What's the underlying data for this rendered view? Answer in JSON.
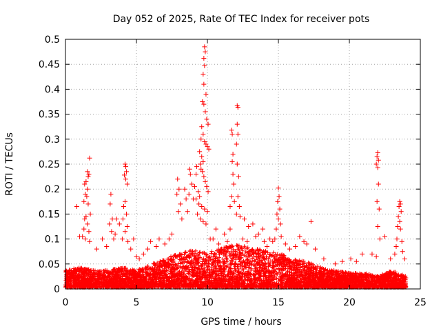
{
  "chart_data": {
    "type": "scatter",
    "title": "Day 052 of 2025, Rate Of TEC Index for receiver pots",
    "xlabel": "GPS time / hours",
    "ylabel": "ROTI / TECUs",
    "xlim": [
      0,
      25
    ],
    "ylim": [
      0,
      0.5
    ],
    "xticks": [
      0,
      5,
      10,
      15,
      20,
      25
    ],
    "xtick_labels": [
      "0",
      "5",
      "10",
      "15",
      "20",
      "25"
    ],
    "yticks": [
      0,
      0.05,
      0.1,
      0.15,
      0.2,
      0.25,
      0.3,
      0.35,
      0.4,
      0.45,
      0.5
    ],
    "ytick_labels": [
      "0",
      "0.05",
      "0.1",
      "0.15",
      "0.2",
      "0.25",
      "0.3",
      "0.35",
      "0.4",
      "0.45",
      "0.5"
    ],
    "grid": true,
    "marker": "+",
    "marker_color": "#ff0000",
    "series_points": [
      [
        9.8,
        0.485
      ],
      [
        9.85,
        0.475
      ],
      [
        9.75,
        0.462
      ],
      [
        9.8,
        0.447
      ],
      [
        9.7,
        0.43
      ],
      [
        9.75,
        0.41
      ],
      [
        9.9,
        0.39
      ],
      [
        9.65,
        0.375
      ],
      [
        9.75,
        0.37
      ],
      [
        9.85,
        0.355
      ],
      [
        9.95,
        0.34
      ],
      [
        10.05,
        0.33
      ],
      [
        9.6,
        0.325
      ],
      [
        9.7,
        0.31
      ],
      [
        9.55,
        0.3
      ],
      [
        9.8,
        0.295
      ],
      [
        9.9,
        0.29
      ],
      [
        10.0,
        0.285
      ],
      [
        10.1,
        0.28
      ],
      [
        9.45,
        0.275
      ],
      [
        9.6,
        0.265
      ],
      [
        9.7,
        0.255
      ],
      [
        9.5,
        0.25
      ],
      [
        9.55,
        0.24
      ],
      [
        9.65,
        0.235
      ],
      [
        9.75,
        0.225
      ],
      [
        9.85,
        0.215
      ],
      [
        9.95,
        0.205
      ],
      [
        10.05,
        0.195
      ],
      [
        9.35,
        0.195
      ],
      [
        9.45,
        0.185
      ],
      [
        9.25,
        0.245
      ],
      [
        9.2,
        0.23
      ],
      [
        9.1,
        0.205
      ],
      [
        9.2,
        0.18
      ],
      [
        9.4,
        0.17
      ],
      [
        9.6,
        0.165
      ],
      [
        9.8,
        0.16
      ],
      [
        10.0,
        0.155
      ],
      [
        9.3,
        0.15
      ],
      [
        9.5,
        0.14
      ],
      [
        9.7,
        0.135
      ],
      [
        9.9,
        0.13
      ],
      [
        11.7,
        0.318
      ],
      [
        11.75,
        0.31
      ],
      [
        11.8,
        0.27
      ],
      [
        11.75,
        0.255
      ],
      [
        11.8,
        0.23
      ],
      [
        11.85,
        0.21
      ],
      [
        11.7,
        0.185
      ],
      [
        11.9,
        0.175
      ],
      [
        11.6,
        0.165
      ],
      [
        12.1,
        0.367
      ],
      [
        12.15,
        0.364
      ],
      [
        12.1,
        0.33
      ],
      [
        12.15,
        0.31
      ],
      [
        12.05,
        0.29
      ],
      [
        12.1,
        0.25
      ],
      [
        12.2,
        0.225
      ],
      [
        12.15,
        0.185
      ],
      [
        12.25,
        0.165
      ],
      [
        12.05,
        0.15
      ],
      [
        12.3,
        0.145
      ],
      [
        1.7,
        0.262
      ],
      [
        1.55,
        0.235
      ],
      [
        1.65,
        0.23
      ],
      [
        1.6,
        0.225
      ],
      [
        1.45,
        0.215
      ],
      [
        1.35,
        0.21
      ],
      [
        1.55,
        0.2
      ],
      [
        1.4,
        0.19
      ],
      [
        1.5,
        0.185
      ],
      [
        1.3,
        0.175
      ],
      [
        1.6,
        0.17
      ],
      [
        1.75,
        0.15
      ],
      [
        1.45,
        0.145
      ],
      [
        1.35,
        0.14
      ],
      [
        1.55,
        0.13
      ],
      [
        1.3,
        0.12
      ],
      [
        1.65,
        0.115
      ],
      [
        1.2,
        0.105
      ],
      [
        1.4,
        0.1
      ],
      [
        1.7,
        0.095
      ],
      [
        1.0,
        0.105
      ],
      [
        0.8,
        0.165
      ],
      [
        4.2,
        0.25
      ],
      [
        4.25,
        0.245
      ],
      [
        4.3,
        0.235
      ],
      [
        4.15,
        0.228
      ],
      [
        4.25,
        0.22
      ],
      [
        4.35,
        0.21
      ],
      [
        4.2,
        0.175
      ],
      [
        4.1,
        0.165
      ],
      [
        4.3,
        0.15
      ],
      [
        4.05,
        0.14
      ],
      [
        4.35,
        0.125
      ],
      [
        4.2,
        0.115
      ],
      [
        4.0,
        0.1
      ],
      [
        4.4,
        0.095
      ],
      [
        3.2,
        0.19
      ],
      [
        3.15,
        0.17
      ],
      [
        3.3,
        0.14
      ],
      [
        3.1,
        0.13
      ],
      [
        3.25,
        0.115
      ],
      [
        3.4,
        0.1
      ],
      [
        3.6,
        0.14
      ],
      [
        3.8,
        0.13
      ],
      [
        3.5,
        0.11
      ],
      [
        2.6,
        0.1
      ],
      [
        2.2,
        0.08
      ],
      [
        2.9,
        0.085
      ],
      [
        7.9,
        0.22
      ],
      [
        8.0,
        0.2
      ],
      [
        7.85,
        0.19
      ],
      [
        8.1,
        0.17
      ],
      [
        7.95,
        0.155
      ],
      [
        8.2,
        0.14
      ],
      [
        8.4,
        0.2
      ],
      [
        8.5,
        0.18
      ],
      [
        8.6,
        0.155
      ],
      [
        8.75,
        0.24
      ],
      [
        8.8,
        0.23
      ],
      [
        8.9,
        0.21
      ],
      [
        8.7,
        0.19
      ],
      [
        9.0,
        0.18
      ],
      [
        7.5,
        0.11
      ],
      [
        7.3,
        0.1
      ],
      [
        7.0,
        0.09
      ],
      [
        6.6,
        0.1
      ],
      [
        6.4,
        0.085
      ],
      [
        6.0,
        0.095
      ],
      [
        5.8,
        0.08
      ],
      [
        5.5,
        0.07
      ],
      [
        5.2,
        0.06
      ],
      [
        5.0,
        0.065
      ],
      [
        4.8,
        0.1
      ],
      [
        4.6,
        0.08
      ],
      [
        15.0,
        0.202
      ],
      [
        15.05,
        0.185
      ],
      [
        14.95,
        0.175
      ],
      [
        15.1,
        0.16
      ],
      [
        14.9,
        0.15
      ],
      [
        15.0,
        0.14
      ],
      [
        15.15,
        0.13
      ],
      [
        14.85,
        0.12
      ],
      [
        15.2,
        0.105
      ],
      [
        14.75,
        0.1
      ],
      [
        14.6,
        0.095
      ],
      [
        14.4,
        0.1
      ],
      [
        14.2,
        0.085
      ],
      [
        13.9,
        0.12
      ],
      [
        13.6,
        0.11
      ],
      [
        13.2,
        0.13
      ],
      [
        12.9,
        0.125
      ],
      [
        12.6,
        0.14
      ],
      [
        13.4,
        0.105
      ],
      [
        14.0,
        0.095
      ],
      [
        16.5,
        0.105
      ],
      [
        16.8,
        0.095
      ],
      [
        17.0,
        0.09
      ],
      [
        17.3,
        0.135
      ],
      [
        17.6,
        0.08
      ],
      [
        16.2,
        0.085
      ],
      [
        15.8,
        0.08
      ],
      [
        15.5,
        0.09
      ],
      [
        18.2,
        0.06
      ],
      [
        19.0,
        0.05
      ],
      [
        19.5,
        0.055
      ],
      [
        20.1,
        0.06
      ],
      [
        20.5,
        0.055
      ],
      [
        20.9,
        0.07
      ],
      [
        21.6,
        0.07
      ],
      [
        21.9,
        0.065
      ],
      [
        22.0,
        0.273
      ],
      [
        21.95,
        0.265
      ],
      [
        22.05,
        0.258
      ],
      [
        21.9,
        0.25
      ],
      [
        22.0,
        0.243
      ],
      [
        22.05,
        0.21
      ],
      [
        21.95,
        0.175
      ],
      [
        22.1,
        0.16
      ],
      [
        22.0,
        0.125
      ],
      [
        22.15,
        0.1
      ],
      [
        22.5,
        0.105
      ],
      [
        23.55,
        0.175
      ],
      [
        23.6,
        0.17
      ],
      [
        23.5,
        0.165
      ],
      [
        23.65,
        0.155
      ],
      [
        23.45,
        0.145
      ],
      [
        23.55,
        0.135
      ],
      [
        23.4,
        0.125
      ],
      [
        23.6,
        0.12
      ],
      [
        23.35,
        0.1
      ],
      [
        23.7,
        0.095
      ],
      [
        23.3,
        0.085
      ],
      [
        23.75,
        0.075
      ],
      [
        23.9,
        0.06
      ],
      [
        23.2,
        0.07
      ],
      [
        22.9,
        0.06
      ],
      [
        10.4,
        0.1
      ],
      [
        10.8,
        0.09
      ],
      [
        11.2,
        0.11
      ],
      [
        11.0,
        0.08
      ],
      [
        10.6,
        0.12
      ],
      [
        10.2,
        0.1
      ],
      [
        11.4,
        0.095
      ],
      [
        11.6,
        0.12
      ],
      [
        12.5,
        0.1
      ],
      [
        12.8,
        0.095
      ]
    ],
    "dense_band": {
      "x_range": [
        0,
        24
      ],
      "profile_x": [
        0,
        1,
        2,
        3,
        4,
        5,
        6,
        7,
        8,
        9,
        10,
        11,
        12,
        13,
        14,
        15,
        16,
        17,
        18,
        19,
        20,
        21,
        22,
        23,
        24
      ],
      "profile_ymax": [
        0.03,
        0.035,
        0.03,
        0.03,
        0.035,
        0.03,
        0.04,
        0.05,
        0.06,
        0.065,
        0.06,
        0.07,
        0.075,
        0.07,
        0.065,
        0.06,
        0.05,
        0.045,
        0.035,
        0.03,
        0.025,
        0.025,
        0.02,
        0.03,
        0.02
      ]
    }
  }
}
